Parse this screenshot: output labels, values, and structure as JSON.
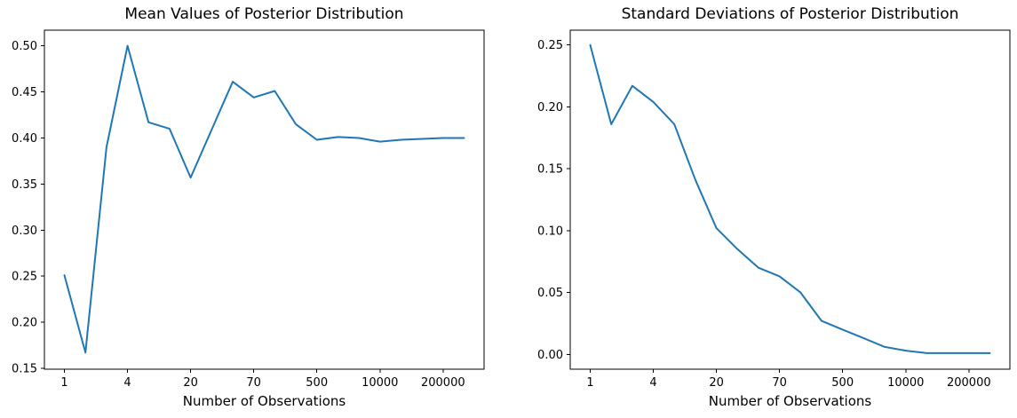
{
  "figure": {
    "background_color": "#ffffff",
    "text_color": "#000000"
  },
  "chart_data": [
    {
      "type": "line",
      "title": "Mean Values of Posterior Distribution",
      "xlabel": "Number of Observations",
      "x_axis_note": "points evenly spaced by sample index; labeled ticks below",
      "x_tick_labels": [
        "1",
        "4",
        "20",
        "70",
        "500",
        "10000",
        "200000"
      ],
      "x_tick_indices": [
        0,
        3,
        6,
        9,
        12,
        15,
        18
      ],
      "y_tick_labels": [
        "0.15",
        "0.20",
        "0.25",
        "0.30",
        "0.35",
        "0.40",
        "0.45",
        "0.50"
      ],
      "ylim": [
        0.149,
        0.517
      ],
      "grid": false,
      "legend": "none",
      "line_color": "#1f77b4",
      "values": [
        0.251,
        0.167,
        0.39,
        0.5,
        0.417,
        0.41,
        0.357,
        0.409,
        0.461,
        0.444,
        0.451,
        0.415,
        0.398,
        0.401,
        0.4,
        0.396,
        0.398,
        0.399,
        0.4,
        0.4
      ]
    },
    {
      "type": "line",
      "title": "Standard Deviations of Posterior Distribution",
      "xlabel": "Number of Observations",
      "x_axis_note": "points evenly spaced by sample index; labeled ticks below",
      "x_tick_labels": [
        "1",
        "4",
        "20",
        "70",
        "500",
        "10000",
        "200000"
      ],
      "x_tick_indices": [
        0,
        3,
        6,
        9,
        12,
        15,
        18
      ],
      "y_tick_labels": [
        "0.00",
        "0.05",
        "0.10",
        "0.15",
        "0.20",
        "0.25"
      ],
      "ylim": [
        -0.012,
        0.262
      ],
      "grid": false,
      "legend": "none",
      "line_color": "#1f77b4",
      "values": [
        0.25,
        0.186,
        0.217,
        0.204,
        0.186,
        0.141,
        0.102,
        0.085,
        0.07,
        0.063,
        0.05,
        0.027,
        0.02,
        0.013,
        0.006,
        0.003,
        0.001,
        0.001,
        0.001,
        0.001
      ]
    }
  ]
}
